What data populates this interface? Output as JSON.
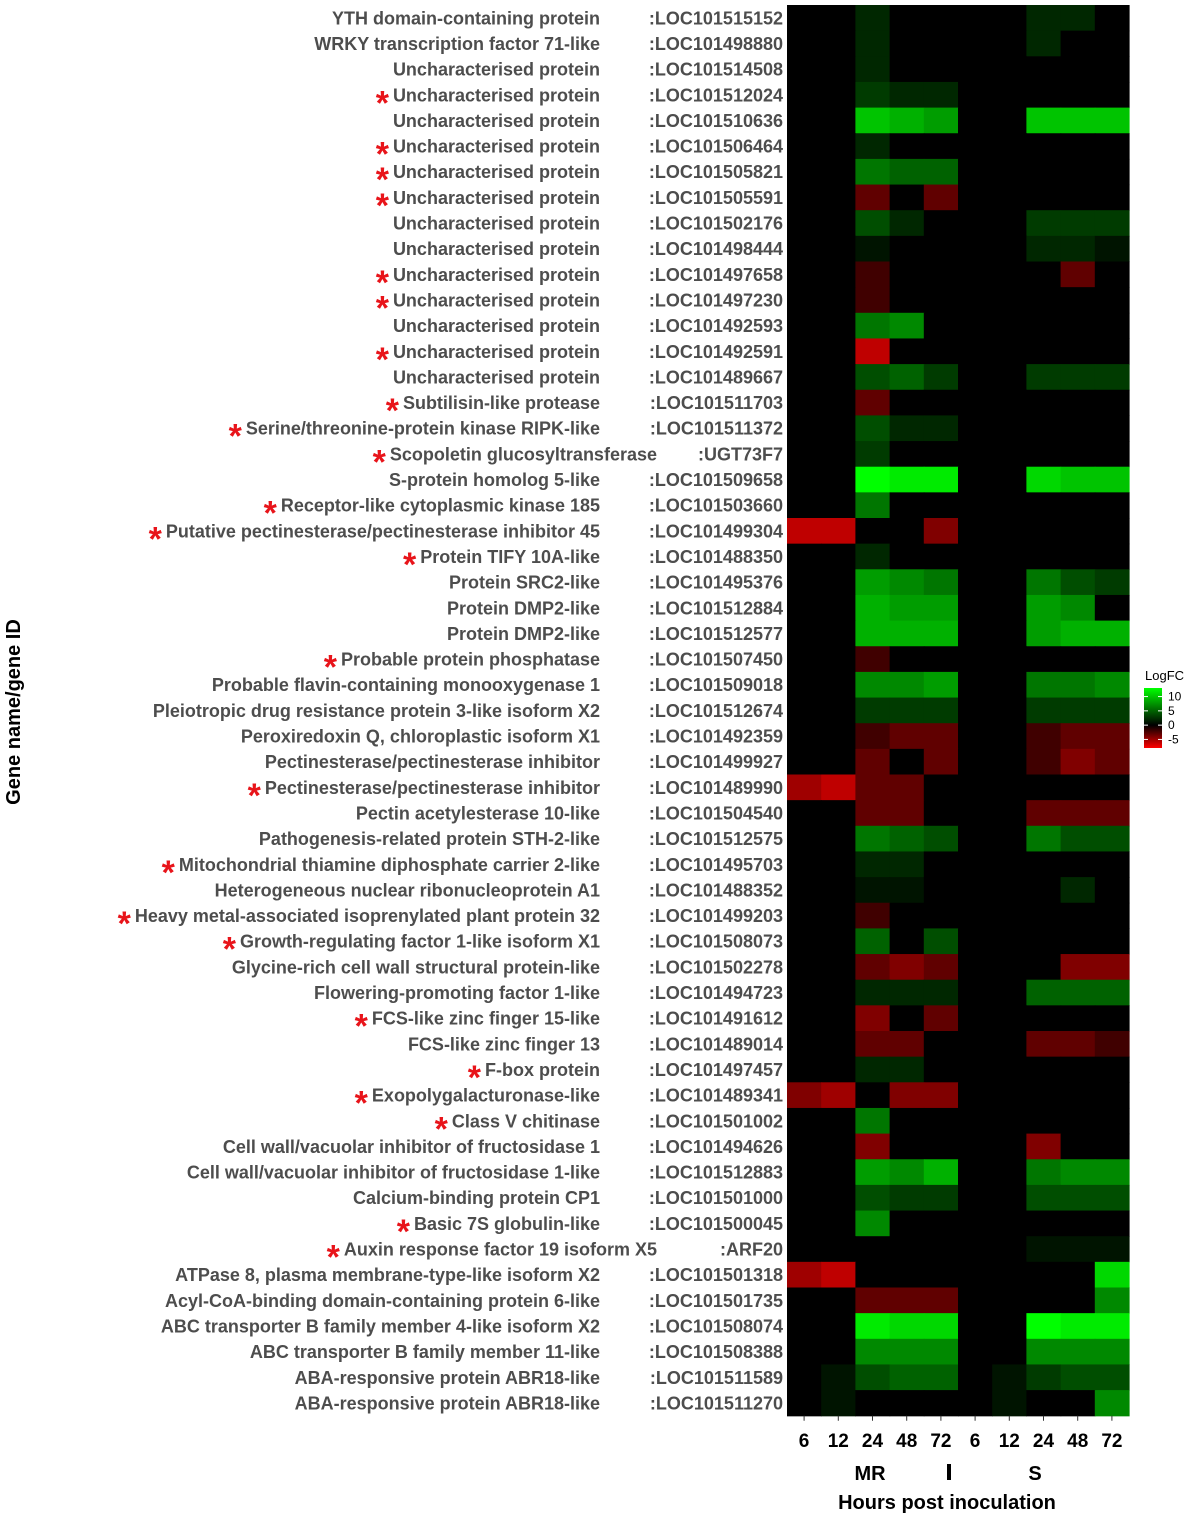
{
  "chart_data": {
    "type": "heatmap",
    "ylabel": "Gene name/gene ID",
    "xlabel": "Hours post inoculation",
    "groups": [
      "MR",
      "S"
    ],
    "timepoints": [
      "6",
      "12",
      "24",
      "48",
      "72"
    ],
    "columns": [
      "MR 6",
      "MR 12",
      "MR 24",
      "MR 48",
      "MR 72",
      "S 6",
      "S 12",
      "S 24",
      "S 48",
      "S 72"
    ],
    "legend": {
      "title": "LogFC",
      "ticks": [
        10,
        5,
        0,
        -5
      ],
      "range": [
        -8,
        13
      ],
      "low_color": "#ff0000",
      "mid_color": "#000000",
      "high_color": "#00ff00"
    },
    "rows": [
      {
        "name": "YTH domain-containing protein",
        "id": ":LOC101515152",
        "star": false,
        "values": [
          0,
          0,
          2,
          0,
          0,
          0,
          0,
          2,
          2,
          0
        ]
      },
      {
        "name": "WRKY transcription factor 71-like",
        "id": ":LOC101498880",
        "star": false,
        "values": [
          0,
          0,
          2,
          0,
          0,
          0,
          0,
          2,
          0,
          0
        ]
      },
      {
        "name": "Uncharacterised protein",
        "id": ":LOC101514508",
        "star": false,
        "values": [
          0,
          0,
          2,
          0,
          0,
          0,
          0,
          0,
          0,
          0
        ]
      },
      {
        "name": "Uncharacterised protein",
        "id": ":LOC101512024",
        "star": true,
        "values": [
          0,
          0,
          3,
          2,
          2,
          0,
          0,
          0,
          0,
          0
        ]
      },
      {
        "name": "Uncharacterised protein",
        "id": ":LOC101510636",
        "star": false,
        "values": [
          0,
          0,
          10,
          9,
          8,
          0,
          0,
          10,
          10,
          10
        ]
      },
      {
        "name": "Uncharacterised protein",
        "id": ":LOC101506464",
        "star": true,
        "values": [
          0,
          0,
          2,
          0,
          0,
          0,
          0,
          0,
          0,
          0
        ]
      },
      {
        "name": "Uncharacterised protein",
        "id": ":LOC101505821",
        "star": true,
        "values": [
          0,
          0,
          6,
          5,
          5,
          0,
          0,
          0,
          0,
          0
        ]
      },
      {
        "name": "Uncharacterised protein",
        "id": ":LOC101505591",
        "star": true,
        "values": [
          0,
          0,
          -3,
          0,
          -3,
          0,
          0,
          0,
          0,
          0
        ]
      },
      {
        "name": "Uncharacterised protein",
        "id": ":LOC101502176",
        "star": false,
        "values": [
          0,
          0,
          4,
          2,
          0,
          0,
          0,
          3,
          3,
          3
        ]
      },
      {
        "name": "Uncharacterised protein",
        "id": ":LOC101498444",
        "star": false,
        "values": [
          0,
          0,
          1,
          0,
          0,
          0,
          0,
          2,
          2,
          1
        ]
      },
      {
        "name": "Uncharacterised protein",
        "id": ":LOC101497658",
        "star": true,
        "values": [
          0,
          0,
          -2,
          0,
          0,
          0,
          0,
          0,
          -3,
          0
        ]
      },
      {
        "name": "Uncharacterised protein",
        "id": ":LOC101497230",
        "star": true,
        "values": [
          0,
          0,
          -2,
          0,
          0,
          0,
          0,
          0,
          0,
          0
        ]
      },
      {
        "name": "Uncharacterised protein",
        "id": ":LOC101492593",
        "star": false,
        "values": [
          0,
          0,
          6,
          7,
          0,
          0,
          0,
          0,
          0,
          0
        ]
      },
      {
        "name": "Uncharacterised protein",
        "id": ":LOC101492591",
        "star": true,
        "values": [
          0,
          0,
          -6,
          0,
          0,
          0,
          0,
          0,
          0,
          0
        ]
      },
      {
        "name": "Uncharacterised protein",
        "id": ":LOC101489667",
        "star": false,
        "values": [
          0,
          0,
          4,
          5,
          3,
          0,
          0,
          3,
          3,
          3
        ]
      },
      {
        "name": "Subtilisin-like protease",
        "id": ":LOC101511703",
        "star": true,
        "values": [
          0,
          0,
          -3,
          0,
          0,
          0,
          0,
          0,
          0,
          0
        ]
      },
      {
        "name": "Serine/threonine-protein kinase RIPK-like",
        "id": ":LOC101511372",
        "star": true,
        "values": [
          0,
          0,
          4,
          2,
          2,
          0,
          0,
          0,
          0,
          0
        ]
      },
      {
        "name": "Scopoletin glucosyltransferase",
        "id": ":UGT73F7",
        "star": true,
        "values": [
          0,
          0,
          3,
          0,
          0,
          0,
          0,
          0,
          0,
          0
        ]
      },
      {
        "name": "S-protein homolog 5-like",
        "id": ":LOC101509658",
        "star": false,
        "values": [
          0,
          0,
          13,
          12,
          12,
          0,
          0,
          11,
          10,
          10
        ]
      },
      {
        "name": "Receptor-like cytoplasmic kinase 185",
        "id": ":LOC101503660",
        "star": true,
        "values": [
          0,
          0,
          6,
          0,
          0,
          0,
          0,
          0,
          0,
          0
        ]
      },
      {
        "name": "Putative pectinesterase/pectinesterase inhibitor 45",
        "id": ":LOC101499304",
        "star": true,
        "values": [
          -6,
          -6,
          0,
          0,
          -4,
          0,
          0,
          0,
          0,
          0
        ]
      },
      {
        "name": "Protein TIFY 10A-like",
        "id": ":LOC101488350",
        "star": true,
        "values": [
          0,
          0,
          2,
          0,
          0,
          0,
          0,
          0,
          0,
          0
        ]
      },
      {
        "name": "Protein SRC2-like",
        "id": ":LOC101495376",
        "star": false,
        "values": [
          0,
          0,
          8,
          7,
          6,
          0,
          0,
          6,
          4,
          3
        ]
      },
      {
        "name": "Protein DMP2-like",
        "id": ":LOC101512884",
        "star": false,
        "values": [
          0,
          0,
          9,
          8,
          8,
          0,
          0,
          8,
          7,
          0
        ]
      },
      {
        "name": "Protein DMP2-like",
        "id": ":LOC101512577",
        "star": false,
        "values": [
          0,
          0,
          9,
          9,
          9,
          0,
          0,
          8,
          9,
          9
        ]
      },
      {
        "name": "Probable protein phosphatase",
        "id": ":LOC101507450",
        "star": true,
        "values": [
          0,
          0,
          -2,
          0,
          0,
          0,
          0,
          0,
          0,
          0
        ]
      },
      {
        "name": "Probable flavin-containing monooxygenase 1",
        "id": ":LOC101509018",
        "star": false,
        "values": [
          0,
          0,
          7,
          7,
          8,
          0,
          0,
          6,
          6,
          7
        ]
      },
      {
        "name": "Pleiotropic drug resistance protein 3-like isoform X2",
        "id": ":LOC101512674",
        "star": false,
        "values": [
          0,
          0,
          3,
          3,
          3,
          0,
          0,
          3,
          3,
          3
        ]
      },
      {
        "name": "Peroxiredoxin Q, chloroplastic isoform X1",
        "id": ":LOC101492359",
        "star": false,
        "values": [
          0,
          0,
          -2,
          -3,
          -3,
          0,
          0,
          -2,
          -3,
          -3
        ]
      },
      {
        "name": "Pectinesterase/pectinesterase inhibitor",
        "id": ":LOC101499927",
        "star": false,
        "values": [
          0,
          0,
          -3,
          0,
          -3,
          0,
          0,
          -2,
          -4,
          -3
        ]
      },
      {
        "name": "Pectinesterase/pectinesterase inhibitor",
        "id": ":LOC101489990",
        "star": true,
        "values": [
          -5,
          -6,
          -3,
          -3,
          0,
          0,
          0,
          0,
          0,
          0
        ]
      },
      {
        "name": "Pectin acetylesterase 10-like",
        "id": ":LOC101504540",
        "star": false,
        "values": [
          0,
          0,
          -3,
          -3,
          0,
          0,
          0,
          -3,
          -3,
          -3
        ]
      },
      {
        "name": "Pathogenesis-related protein STH-2-like",
        "id": ":LOC101512575",
        "star": false,
        "values": [
          0,
          0,
          6,
          5,
          4,
          0,
          0,
          6,
          4,
          4
        ]
      },
      {
        "name": "Mitochondrial thiamine diphosphate carrier 2-like",
        "id": ":LOC101495703",
        "star": true,
        "values": [
          0,
          0,
          2,
          2,
          0,
          0,
          0,
          0,
          0,
          0
        ]
      },
      {
        "name": "Heterogeneous nuclear ribonucleoprotein A1",
        "id": ":LOC101488352",
        "star": false,
        "values": [
          0,
          0,
          1,
          1,
          0,
          0,
          0,
          0,
          2,
          0
        ]
      },
      {
        "name": "Heavy metal-associated isoprenylated plant protein 32",
        "id": ":LOC101499203",
        "star": true,
        "values": [
          0,
          0,
          -2,
          0,
          0,
          0,
          0,
          0,
          0,
          0
        ]
      },
      {
        "name": "Growth-regulating factor 1-like isoform X1",
        "id": ":LOC101508073",
        "star": true,
        "values": [
          0,
          0,
          5,
          0,
          4,
          0,
          0,
          0,
          0,
          0
        ]
      },
      {
        "name": "Glycine-rich cell wall structural protein-like",
        "id": ":LOC101502278",
        "star": false,
        "values": [
          0,
          0,
          -3,
          -4,
          -3,
          0,
          0,
          0,
          -4,
          -4
        ]
      },
      {
        "name": "Flowering-promoting factor 1-like",
        "id": ":LOC101494723",
        "star": false,
        "values": [
          0,
          0,
          2,
          2,
          2,
          0,
          0,
          5,
          5,
          5
        ]
      },
      {
        "name": "FCS-like zinc finger 15-like",
        "id": ":LOC101491612",
        "star": true,
        "values": [
          0,
          0,
          -4,
          0,
          -3,
          0,
          0,
          0,
          0,
          0
        ]
      },
      {
        "name": "FCS-like zinc finger 13",
        "id": ":LOC101489014",
        "star": false,
        "values": [
          0,
          0,
          -3,
          -3,
          0,
          0,
          0,
          -3,
          -3,
          -2
        ]
      },
      {
        "name": "F-box protein",
        "id": ":LOC101497457",
        "star": true,
        "values": [
          0,
          0,
          2,
          2,
          0,
          0,
          0,
          0,
          0,
          0
        ]
      },
      {
        "name": "Exopolygalacturonase-like",
        "id": ":LOC101489341",
        "star": true,
        "values": [
          -4,
          -5,
          0,
          -4,
          -4,
          0,
          0,
          0,
          0,
          0
        ]
      },
      {
        "name": "Class V chitinase",
        "id": ":LOC101501002",
        "star": true,
        "values": [
          0,
          0,
          6,
          0,
          0,
          0,
          0,
          0,
          0,
          0
        ]
      },
      {
        "name": "Cell wall/vacuolar inhibitor of fructosidase 1",
        "id": ":LOC101494626",
        "star": false,
        "values": [
          0,
          0,
          -4,
          0,
          0,
          0,
          0,
          -4,
          0,
          0
        ]
      },
      {
        "name": "Cell wall/vacuolar inhibitor of fructosidase 1-like",
        "id": ":LOC101512883",
        "star": false,
        "values": [
          0,
          0,
          8,
          7,
          9,
          0,
          0,
          6,
          7,
          7
        ]
      },
      {
        "name": "Calcium-binding protein CP1",
        "id": ":LOC101501000",
        "star": false,
        "values": [
          0,
          0,
          4,
          3,
          3,
          0,
          0,
          4,
          4,
          4
        ]
      },
      {
        "name": "Basic 7S globulin-like",
        "id": ":LOC101500045",
        "star": true,
        "values": [
          0,
          0,
          7,
          0,
          0,
          0,
          0,
          0,
          0,
          0
        ]
      },
      {
        "name": "Auxin response factor 19 isoform X5",
        "id": ":ARF20",
        "star": true,
        "values": [
          0,
          0,
          0,
          0,
          0,
          0,
          0,
          1,
          1,
          1
        ]
      },
      {
        "name": "ATPase 8, plasma membrane-type-like isoform X2",
        "id": ":LOC101501318",
        "star": false,
        "values": [
          -5,
          -6,
          0,
          0,
          0,
          0,
          0,
          0,
          0,
          11
        ]
      },
      {
        "name": "Acyl-CoA-binding domain-containing protein 6-like",
        "id": ":LOC101501735",
        "star": false,
        "values": [
          0,
          0,
          -3,
          -3,
          -3,
          0,
          0,
          0,
          0,
          7
        ]
      },
      {
        "name": "ABC transporter B family member 4-like isoform X2",
        "id": ":LOC101508074",
        "star": false,
        "values": [
          0,
          0,
          12,
          11,
          11,
          0,
          0,
          13,
          12,
          12
        ]
      },
      {
        "name": "ABC transporter B family member 11-like",
        "id": ":LOC101508388",
        "star": false,
        "values": [
          0,
          0,
          7,
          7,
          7,
          0,
          0,
          7,
          7,
          7
        ]
      },
      {
        "name": "ABA-responsive protein ABR18-like",
        "id": ":LOC101511589",
        "star": false,
        "values": [
          0,
          1,
          4,
          5,
          5,
          0,
          1,
          3,
          4,
          4
        ]
      },
      {
        "name": "ABA-responsive protein ABR18-like",
        "id": ":LOC101511270",
        "star": false,
        "values": [
          0,
          1,
          0,
          0,
          0,
          0,
          1,
          0,
          0,
          7
        ]
      }
    ]
  }
}
